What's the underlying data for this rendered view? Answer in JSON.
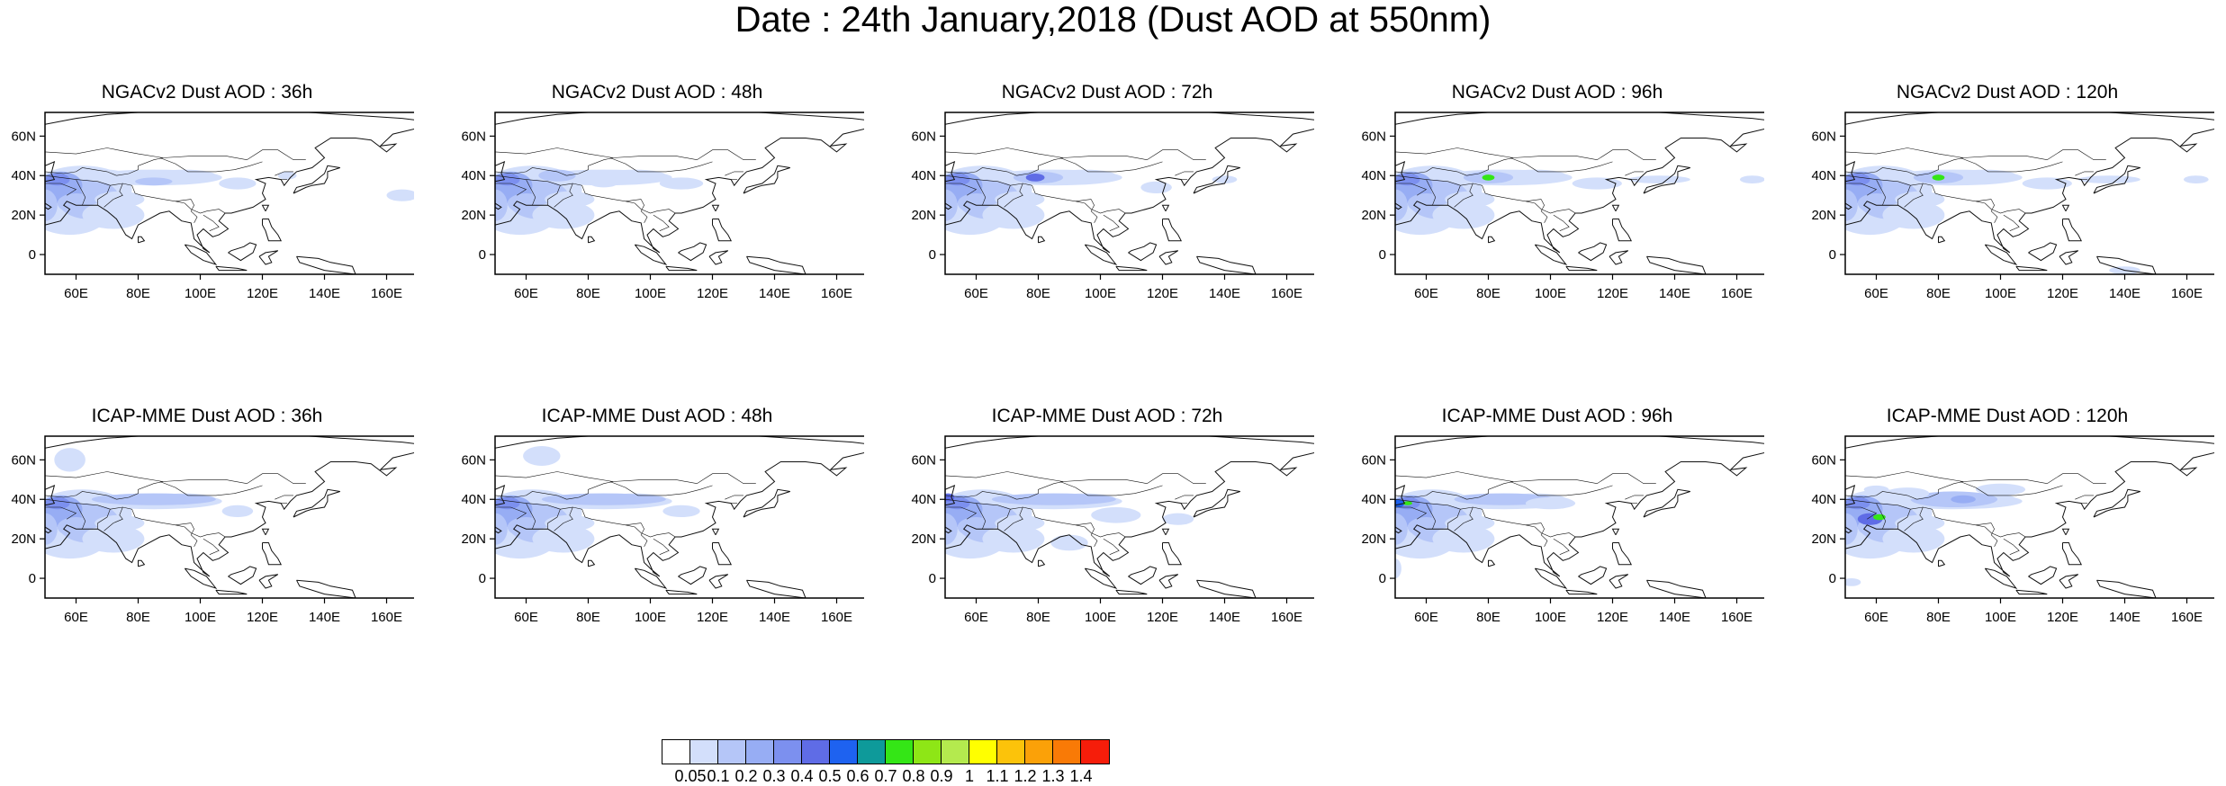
{
  "title": "Date : 24th January,2018 (Dust AOD at 550nm)",
  "xticks": [
    "60E",
    "80E",
    "100E",
    "120E",
    "140E",
    "160E"
  ],
  "yticks": [
    "60N",
    "40N",
    "20N",
    "0"
  ],
  "panels": [
    {
      "title": "NGACv2 Dust AOD : 36h",
      "model": "NGACv2",
      "lead": "36h"
    },
    {
      "title": "NGACv2 Dust AOD : 48h",
      "model": "NGACv2",
      "lead": "48h"
    },
    {
      "title": "NGACv2 Dust AOD : 72h",
      "model": "NGACv2",
      "lead": "72h"
    },
    {
      "title": "NGACv2 Dust AOD : 96h",
      "model": "NGACv2",
      "lead": "96h"
    },
    {
      "title": "NGACv2 Dust AOD : 120h",
      "model": "NGACv2",
      "lead": "120h"
    },
    {
      "title": "ICAP-MME Dust AOD : 36h",
      "model": "ICAP-MME",
      "lead": "36h"
    },
    {
      "title": "ICAP-MME Dust AOD : 48h",
      "model": "ICAP-MME",
      "lead": "48h"
    },
    {
      "title": "ICAP-MME Dust AOD : 72h",
      "model": "ICAP-MME",
      "lead": "72h"
    },
    {
      "title": "ICAP-MME Dust AOD : 96h",
      "model": "ICAP-MME",
      "lead": "96h"
    },
    {
      "title": "ICAP-MME Dust AOD : 120h",
      "model": "ICAP-MME",
      "lead": "120h"
    }
  ],
  "colorbar": {
    "colors": [
      "#ffffff",
      "#d3dffb",
      "#b5c6f8",
      "#97adf4",
      "#7c90ef",
      "#5f6ce6",
      "#1e62f0",
      "#0e9a9a",
      "#34e616",
      "#8ee616",
      "#b4ea4e",
      "#ffff00",
      "#fcc30a",
      "#fba108",
      "#f97a06",
      "#f61d0a"
    ],
    "labels": [
      "0.05",
      "0.1",
      "0.2",
      "0.3",
      "0.4",
      "0.5",
      "0.6",
      "0.7",
      "0.8",
      "0.9",
      "1",
      "1.1",
      "1.2",
      "1.3",
      "1.4"
    ]
  }
}
